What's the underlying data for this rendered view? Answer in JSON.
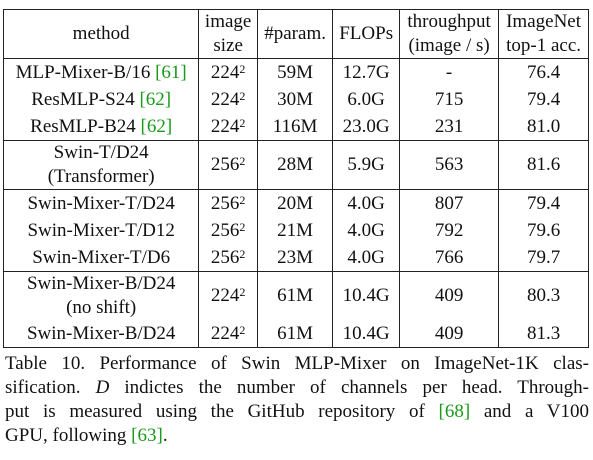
{
  "table": {
    "headers": [
      {
        "line1": "method",
        "line2": ""
      },
      {
        "line1": "image",
        "line2": "size"
      },
      {
        "line1": "#param.",
        "line2": ""
      },
      {
        "line1": "FLOPs",
        "line2": ""
      },
      {
        "line1": "throughput",
        "line2": "(image / s)"
      },
      {
        "line1": "ImageNet",
        "line2": "top-1 acc."
      }
    ],
    "groups": [
      {
        "rows": [
          {
            "method": "MLP-Mixer-B/16",
            "cite": "[61]",
            "method2": "",
            "size": "224",
            "exp": "2",
            "params": "59M",
            "flops": "12.7G",
            "throughput": "-",
            "acc": "76.4"
          },
          {
            "method": "ResMLP-S24",
            "cite": "[62]",
            "method2": "",
            "size": "224",
            "exp": "2",
            "params": "30M",
            "flops": "6.0G",
            "throughput": "715",
            "acc": "79.4"
          },
          {
            "method": "ResMLP-B24",
            "cite": "[62]",
            "method2": "",
            "size": "224",
            "exp": "2",
            "params": "116M",
            "flops": "23.0G",
            "throughput": "231",
            "acc": "81.0"
          }
        ]
      },
      {
        "rows": [
          {
            "method": "Swin-T/D24",
            "cite": "",
            "method2": "(Transformer)",
            "size": "256",
            "exp": "2",
            "params": "28M",
            "flops": "5.9G",
            "throughput": "563",
            "acc": "81.6"
          }
        ]
      },
      {
        "rows": [
          {
            "method": "Swin-Mixer-T/D24",
            "cite": "",
            "method2": "",
            "size": "256",
            "exp": "2",
            "params": "20M",
            "flops": "4.0G",
            "throughput": "807",
            "acc": "79.4"
          },
          {
            "method": "Swin-Mixer-T/D12",
            "cite": "",
            "method2": "",
            "size": "256",
            "exp": "2",
            "params": "21M",
            "flops": "4.0G",
            "throughput": "792",
            "acc": "79.6"
          },
          {
            "method": "Swin-Mixer-T/D6",
            "cite": "",
            "method2": "",
            "size": "256",
            "exp": "2",
            "params": "23M",
            "flops": "4.0G",
            "throughput": "766",
            "acc": "79.7"
          }
        ]
      },
      {
        "rows": [
          {
            "method": "Swin-Mixer-B/D24",
            "cite": "",
            "method2": "(no shift)",
            "size": "224",
            "exp": "2",
            "params": "61M",
            "flops": "10.4G",
            "throughput": "409",
            "acc": "80.3"
          },
          {
            "method": "Swin-Mixer-B/D24",
            "cite": "",
            "method2": "",
            "size": "224",
            "exp": "2",
            "params": "61M",
            "flops": "10.4G",
            "throughput": "409",
            "acc": "81.3"
          }
        ]
      }
    ]
  },
  "caption": {
    "l1": "Table 10. Performance of Swin MLP-Mixer on ImageNet-1K clas-",
    "l2_a": "sification. ",
    "l2_d": "D",
    "l2_b": " indictes the number of channels per head. Through-",
    "l3_a": "put is measured using the GitHub repository of ",
    "l3_cite": "[68]",
    "l3_b": " and a V100",
    "l4_a": "GPU, following ",
    "l4_cite": "[63]",
    "l4_b": "."
  },
  "colors": {
    "citation": "#1a9a1a",
    "text": "#111111"
  }
}
